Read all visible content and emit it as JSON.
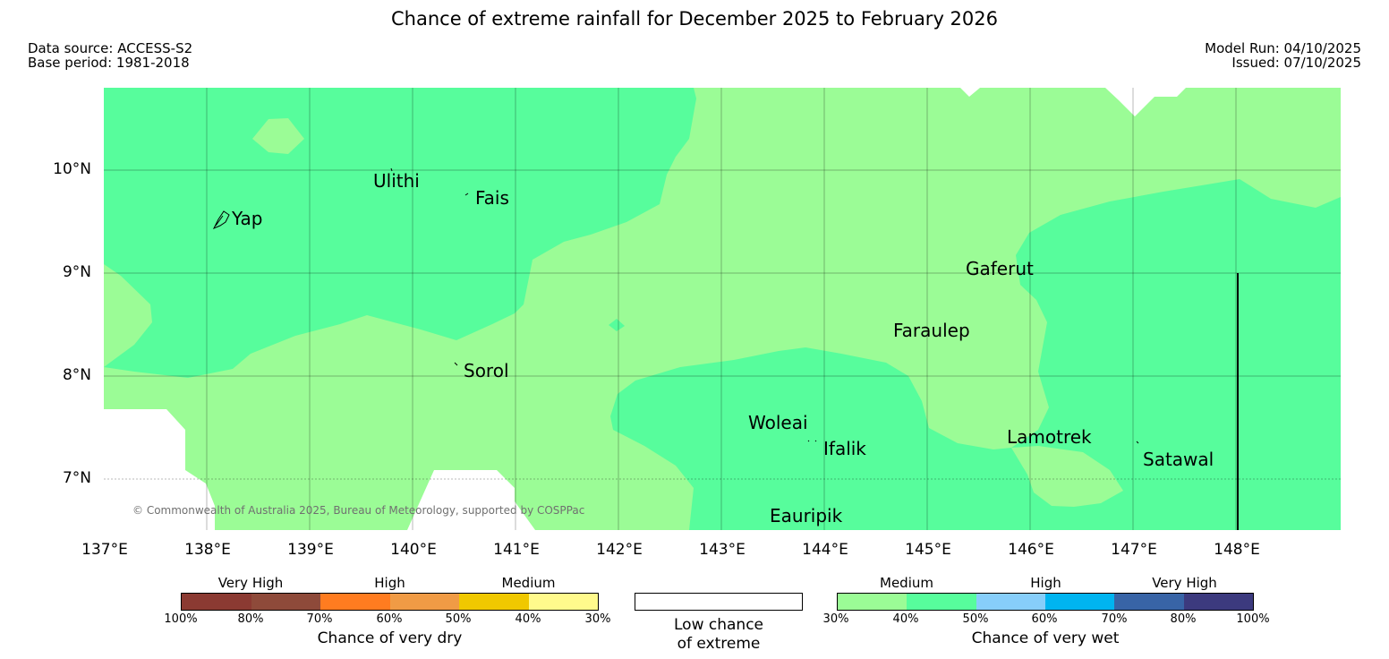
{
  "header": {
    "title": "Chance of extreme rainfall for December 2025 to February 2026",
    "data_source": "Data source: ACCESS-S2",
    "base_period": "Base period: 1981-2018",
    "model_run": "Model Run: 04/10/2025",
    "issued": "Issued: 07/10/2025"
  },
  "map": {
    "lat_labels": [
      "10°N",
      "9°N",
      "8°N",
      "7°N"
    ],
    "lon_labels": [
      "137°E",
      "138°E",
      "139°E",
      "140°E",
      "141°E",
      "142°E",
      "143°E",
      "144°E",
      "145°E",
      "146°E",
      "147°E",
      "148°E"
    ],
    "places": {
      "yap": "Yap",
      "ulithi": "Ulithi",
      "fais": "Fais",
      "sorol": "Sorol",
      "gaferut": "Gaferut",
      "faraulep": "Faraulep",
      "woleai": "Woleai",
      "ifalik": "Ifalik",
      "lamotrek": "Lamotrek",
      "satawal": "Satawal",
      "eauripik": "Eauripik"
    },
    "copyright": "© Commonwealth of Australia 2025, Bureau of Meteorology, supported by COSPPac",
    "colors": {
      "medium_wet_30_40": "#9bfc96",
      "medium_wet_40_50": "#57fd9c",
      "low_chance": "#ffffff"
    }
  },
  "legend": {
    "dry": {
      "groups": [
        "Very High",
        "High",
        "Medium"
      ],
      "ticks": [
        "100%",
        "80%",
        "70%",
        "60%",
        "50%",
        "40%",
        "30%"
      ],
      "caption": "Chance of very dry",
      "colors": [
        "#8b3a32",
        "#8e4a3a",
        "#ff7c20",
        "#f09b45",
        "#f0c800",
        "#fffa8c"
      ]
    },
    "low": {
      "line1": "Low chance",
      "line2": "of extreme",
      "color": "#ffffff"
    },
    "wet": {
      "groups": [
        "Medium",
        "High",
        "Very High"
      ],
      "ticks": [
        "30%",
        "40%",
        "50%",
        "60%",
        "70%",
        "80%",
        "100%"
      ],
      "caption": "Chance of very wet",
      "colors": [
        "#9bfc96",
        "#57fd9c",
        "#87cefa",
        "#00b4f0",
        "#3864a6",
        "#3c3a7e"
      ]
    }
  }
}
